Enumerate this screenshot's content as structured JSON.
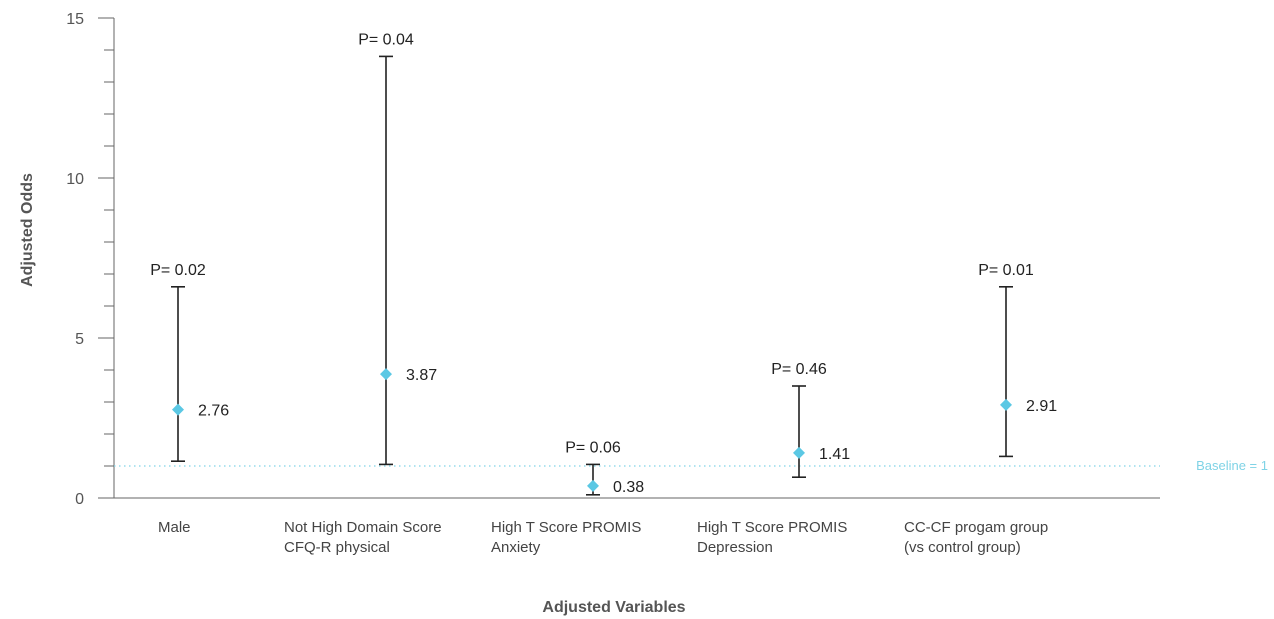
{
  "chart_data": {
    "type": "errorbar",
    "title": "",
    "xlabel": "Adjusted Variables",
    "ylabel": "Adjusted Odds",
    "ylim": [
      0,
      15
    ],
    "yticks_major": [
      0,
      5,
      10,
      15
    ],
    "yticks_minor_step": 1,
    "grid": false,
    "categories": [
      [
        "Male"
      ],
      [
        "Not High Domain Score",
        "CFQ-R physical"
      ],
      [
        "High T Score PROMIS",
        "Anxiety"
      ],
      [
        "High T Score PROMIS",
        "Depression"
      ],
      [
        "CC-CF progam group",
        "(vs control group)"
      ]
    ],
    "values": [
      2.76,
      3.87,
      0.38,
      1.41,
      2.91
    ],
    "value_labels": [
      "2.76",
      "3.87",
      "0.38",
      "1.41",
      "2.91"
    ],
    "ci_low": [
      1.15,
      1.05,
      0.1,
      0.65,
      1.3
    ],
    "ci_high": [
      6.6,
      13.8,
      1.05,
      3.5,
      6.6
    ],
    "p_labels": [
      "P= 0.02",
      "P= 0.04",
      "P= 0.06",
      "P= 0.46",
      "P= 0.01"
    ],
    "baseline": {
      "value": 1,
      "label": "Baseline = 1",
      "color": "#7fd3e6"
    },
    "marker_color": "#5bc8e4",
    "bar_color": "#222222",
    "axis_color": "#666666"
  }
}
